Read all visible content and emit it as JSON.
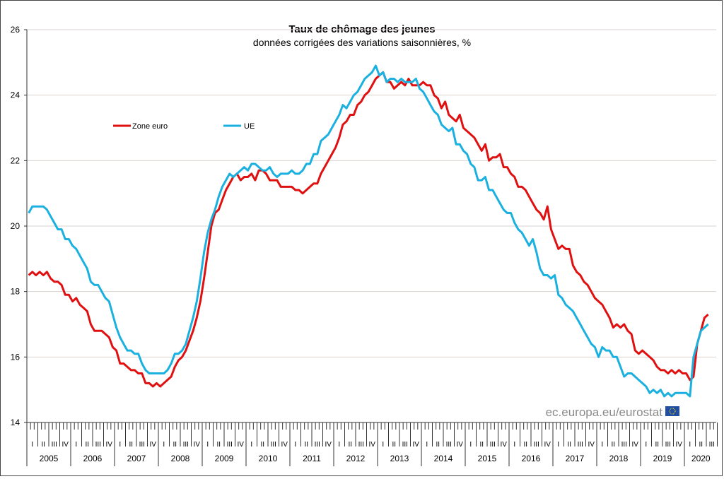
{
  "chart_data": {
    "type": "line",
    "title": "Taux de chômage des jeunes",
    "subtitle": "données corrigées des variations saisonnières, %",
    "xlabel": "",
    "ylabel": "",
    "ylim": [
      14,
      26
    ],
    "yticks": [
      "14",
      "16",
      "18",
      "20",
      "22",
      "24",
      "26"
    ],
    "ytick_values": [
      14,
      16,
      18,
      20,
      22,
      24,
      26
    ],
    "x_start": "2005-01",
    "frequency": "monthly",
    "years": [
      "2005",
      "2006",
      "2007",
      "2008",
      "2009",
      "2010",
      "2011",
      "2012",
      "2013",
      "2014",
      "2015",
      "2016",
      "2017",
      "2018",
      "2019",
      "2020"
    ],
    "quarters": [
      "I",
      "II",
      "III",
      "IV"
    ],
    "grid": true,
    "legend_placement": "top-left",
    "source": "ec.europa.eu/eurostat",
    "series": [
      {
        "name": "Zone euro",
        "color": "#e01010",
        "values": [
          18.5,
          18.6,
          18.5,
          18.6,
          18.5,
          18.6,
          18.4,
          18.3,
          18.3,
          18.2,
          17.9,
          17.9,
          17.7,
          17.8,
          17.6,
          17.5,
          17.4,
          17.0,
          16.8,
          16.8,
          16.8,
          16.7,
          16.6,
          16.3,
          16.2,
          15.8,
          15.8,
          15.7,
          15.6,
          15.6,
          15.5,
          15.5,
          15.2,
          15.2,
          15.1,
          15.2,
          15.1,
          15.2,
          15.3,
          15.4,
          15.7,
          15.9,
          16.0,
          16.2,
          16.5,
          16.8,
          17.2,
          17.7,
          18.4,
          19.2,
          20.0,
          20.4,
          20.5,
          20.8,
          21.1,
          21.3,
          21.5,
          21.6,
          21.4,
          21.5,
          21.5,
          21.6,
          21.4,
          21.7,
          21.7,
          21.6,
          21.4,
          21.4,
          21.4,
          21.2,
          21.2,
          21.2,
          21.2,
          21.1,
          21.1,
          21.0,
          21.1,
          21.2,
          21.3,
          21.3,
          21.6,
          21.8,
          22.0,
          22.2,
          22.4,
          22.7,
          23.1,
          23.2,
          23.4,
          23.4,
          23.7,
          23.8,
          24.0,
          24.1,
          24.3,
          24.5,
          24.6,
          24.7,
          24.4,
          24.4,
          24.2,
          24.3,
          24.4,
          24.3,
          24.5,
          24.3,
          24.3,
          24.3,
          24.4,
          24.3,
          24.3,
          24.0,
          23.9,
          23.6,
          23.8,
          23.4,
          23.3,
          23.2,
          23.4,
          23.0,
          22.9,
          22.8,
          22.7,
          22.5,
          22.3,
          22.5,
          22.0,
          22.1,
          22.1,
          22.2,
          21.8,
          21.8,
          21.6,
          21.5,
          21.2,
          21.2,
          21.1,
          20.9,
          20.7,
          20.5,
          20.4,
          20.2,
          20.6,
          19.9,
          19.6,
          19.3,
          19.4,
          19.3,
          19.3,
          18.8,
          18.6,
          18.5,
          18.3,
          18.2,
          18.0,
          17.8,
          17.7,
          17.6,
          17.4,
          17.2,
          16.9,
          17.0,
          16.9,
          17.0,
          16.8,
          16.7,
          16.2,
          16.1,
          16.2,
          16.1,
          16.0,
          15.9,
          15.7,
          15.6,
          15.6,
          15.5,
          15.6,
          15.5,
          15.6,
          15.5,
          15.5,
          15.3,
          15.4,
          16.4,
          16.8,
          17.2,
          17.3
        ]
      },
      {
        "name": "UE",
        "color": "#1ab0e0",
        "values": [
          20.4,
          20.6,
          20.6,
          20.6,
          20.6,
          20.5,
          20.3,
          20.1,
          19.9,
          19.9,
          19.6,
          19.6,
          19.4,
          19.3,
          19.1,
          18.9,
          18.7,
          18.3,
          18.2,
          18.2,
          18.0,
          17.8,
          17.7,
          17.3,
          16.9,
          16.6,
          16.4,
          16.2,
          16.2,
          16.1,
          16.1,
          15.8,
          15.6,
          15.5,
          15.5,
          15.5,
          15.5,
          15.5,
          15.6,
          15.8,
          16.1,
          16.1,
          16.2,
          16.4,
          16.8,
          17.2,
          17.7,
          18.4,
          19.2,
          19.8,
          20.2,
          20.5,
          20.9,
          21.2,
          21.4,
          21.6,
          21.5,
          21.6,
          21.7,
          21.8,
          21.7,
          21.9,
          21.9,
          21.8,
          21.7,
          21.7,
          21.8,
          21.6,
          21.5,
          21.6,
          21.6,
          21.6,
          21.7,
          21.6,
          21.6,
          21.7,
          21.9,
          21.9,
          22.2,
          22.2,
          22.6,
          22.7,
          22.8,
          23.0,
          23.2,
          23.4,
          23.7,
          23.6,
          23.8,
          24.0,
          24.1,
          24.3,
          24.5,
          24.6,
          24.7,
          24.9,
          24.6,
          24.7,
          24.4,
          24.5,
          24.5,
          24.4,
          24.5,
          24.4,
          24.4,
          24.4,
          24.5,
          24.2,
          24.1,
          23.9,
          23.7,
          23.5,
          23.4,
          23.1,
          23.0,
          22.9,
          23.0,
          22.5,
          22.5,
          22.3,
          22.2,
          21.9,
          21.8,
          21.4,
          21.4,
          21.5,
          21.1,
          21.1,
          20.9,
          20.7,
          20.5,
          20.4,
          20.4,
          20.1,
          19.9,
          19.8,
          19.6,
          19.4,
          19.6,
          19.2,
          18.7,
          18.5,
          18.5,
          18.4,
          18.5,
          17.9,
          17.8,
          17.6,
          17.5,
          17.4,
          17.2,
          17.0,
          16.8,
          16.6,
          16.4,
          16.3,
          16.0,
          16.3,
          16.2,
          16.2,
          16.0,
          16.0,
          15.7,
          15.4,
          15.5,
          15.5,
          15.4,
          15.3,
          15.2,
          15.1,
          14.9,
          15.0,
          14.9,
          15.0,
          14.8,
          14.9,
          14.8,
          14.9,
          14.9,
          14.9,
          14.9,
          14.8,
          16.0,
          16.4,
          16.8,
          16.9,
          17.0
        ]
      }
    ]
  }
}
